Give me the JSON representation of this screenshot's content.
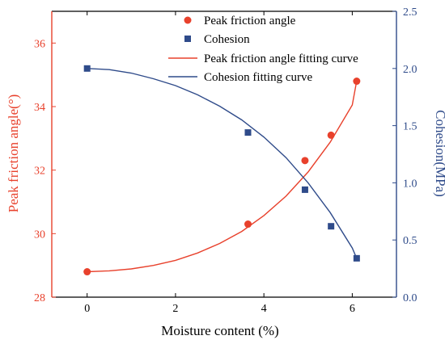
{
  "chart_data": {
    "type": "scatter",
    "xlabel": "Moisture content (%)",
    "ylabel_left": "Peak friction angle(°)",
    "ylabel_right": "Cohesion(MPa)",
    "xlim": [
      -0.8,
      7.0
    ],
    "ylim_left": [
      28,
      37
    ],
    "ylim_right": [
      0.0,
      2.5
    ],
    "x_ticks": [
      0,
      2,
      4,
      6
    ],
    "y_left_ticks": [
      28,
      30,
      32,
      34,
      36
    ],
    "y_right_ticks": [
      0.0,
      0.5,
      1.0,
      1.5,
      2.0,
      2.5
    ],
    "x_tick_labels": [
      "0",
      "2",
      "4",
      "6"
    ],
    "y_left_tick_labels": [
      "28",
      "30",
      "32",
      "34",
      "36"
    ],
    "y_right_tick_labels": [
      "0.0",
      "0.5",
      "1.0",
      "1.5",
      "2.0",
      "2.5"
    ],
    "legend_placement": "top-right",
    "series": [
      {
        "name": "Peak friction angle",
        "axis": "left",
        "marker": "circle",
        "color": "#e8412c",
        "x": [
          0,
          3.64,
          4.93,
          5.52,
          6.1
        ],
        "y": [
          28.8,
          30.3,
          32.3,
          33.1,
          34.8
        ]
      },
      {
        "name": "Cohesion",
        "axis": "right",
        "marker": "square",
        "color": "#2f4b8a",
        "x": [
          0,
          3.64,
          4.93,
          5.52,
          6.1
        ],
        "y": [
          2.0,
          1.44,
          0.94,
          0.62,
          0.34
        ]
      },
      {
        "name": "Peak friction angle fitting curve",
        "axis": "left",
        "line": true,
        "color": "#e8412c",
        "x": [
          0,
          0.5,
          1,
          1.5,
          2,
          2.5,
          3,
          3.5,
          4,
          4.5,
          5,
          5.5,
          6,
          6.1
        ],
        "y": [
          28.8,
          28.83,
          28.89,
          29.0,
          29.16,
          29.39,
          29.69,
          30.07,
          30.57,
          31.18,
          31.94,
          32.88,
          34.05,
          34.8
        ]
      },
      {
        "name": "Cohesion fitting curve",
        "axis": "right",
        "line": true,
        "color": "#2f4b8a",
        "x": [
          0,
          0.5,
          1,
          1.5,
          2,
          2.5,
          3,
          3.5,
          4,
          4.5,
          5,
          5.5,
          6,
          6.1
        ],
        "y": [
          2.0,
          1.99,
          1.96,
          1.91,
          1.85,
          1.77,
          1.67,
          1.55,
          1.4,
          1.22,
          1.0,
          0.74,
          0.43,
          0.34
        ]
      }
    ]
  }
}
